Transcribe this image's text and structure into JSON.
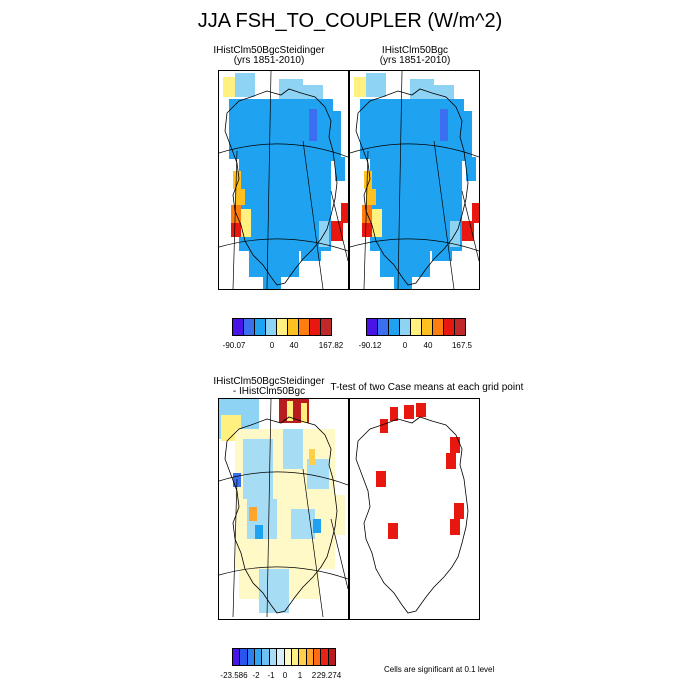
{
  "title": "JJA FSH_TO_COUPLER (W/m^2)",
  "chart_data": [
    {
      "type": "heatmap",
      "title": "IHistClm50BgcSteidinger",
      "subtitle": "(yrs 1851-2010)",
      "colorbar": {
        "colors": [
          "#4a14e6",
          "#3a6ff0",
          "#1fa3f0",
          "#8fd3f4",
          "#fff080",
          "#ffc020",
          "#ff7d10",
          "#e81810",
          "#c0282a"
        ],
        "labels": [
          "-90.07",
          "0",
          "40",
          "167.82"
        ]
      }
    },
    {
      "type": "heatmap",
      "title": "IHistClm50Bgc",
      "subtitle": "(yrs 1851-2010)",
      "colorbar": {
        "colors": [
          "#4a14e6",
          "#3a6ff0",
          "#1fa3f0",
          "#8fd3f4",
          "#fff080",
          "#ffc020",
          "#ff7d10",
          "#e81810",
          "#c0282a"
        ],
        "labels": [
          "-90.12",
          "0",
          "40",
          "167.5"
        ]
      }
    },
    {
      "type": "heatmap",
      "title": "IHistClm50BgcSteidinger",
      "subtitle": "- IHistClm50Bgc",
      "colorbar": {
        "colors": [
          "#4a14e6",
          "#2a55ec",
          "#2c7ff0",
          "#34a4f0",
          "#6cc0f2",
          "#a6dcf4",
          "#d8eef8",
          "#fff9c8",
          "#fff080",
          "#ffcf4a",
          "#ffa52c",
          "#ff6a18",
          "#e82414",
          "#b81c1c"
        ],
        "labels": [
          "-23.586",
          "-2",
          "-1",
          "0",
          "1",
          "2",
          "29.274"
        ]
      }
    },
    {
      "type": "heatmap",
      "title": "T-test of two Case means at each grid point",
      "note": "Cells are significant at 0.1 level"
    }
  ]
}
